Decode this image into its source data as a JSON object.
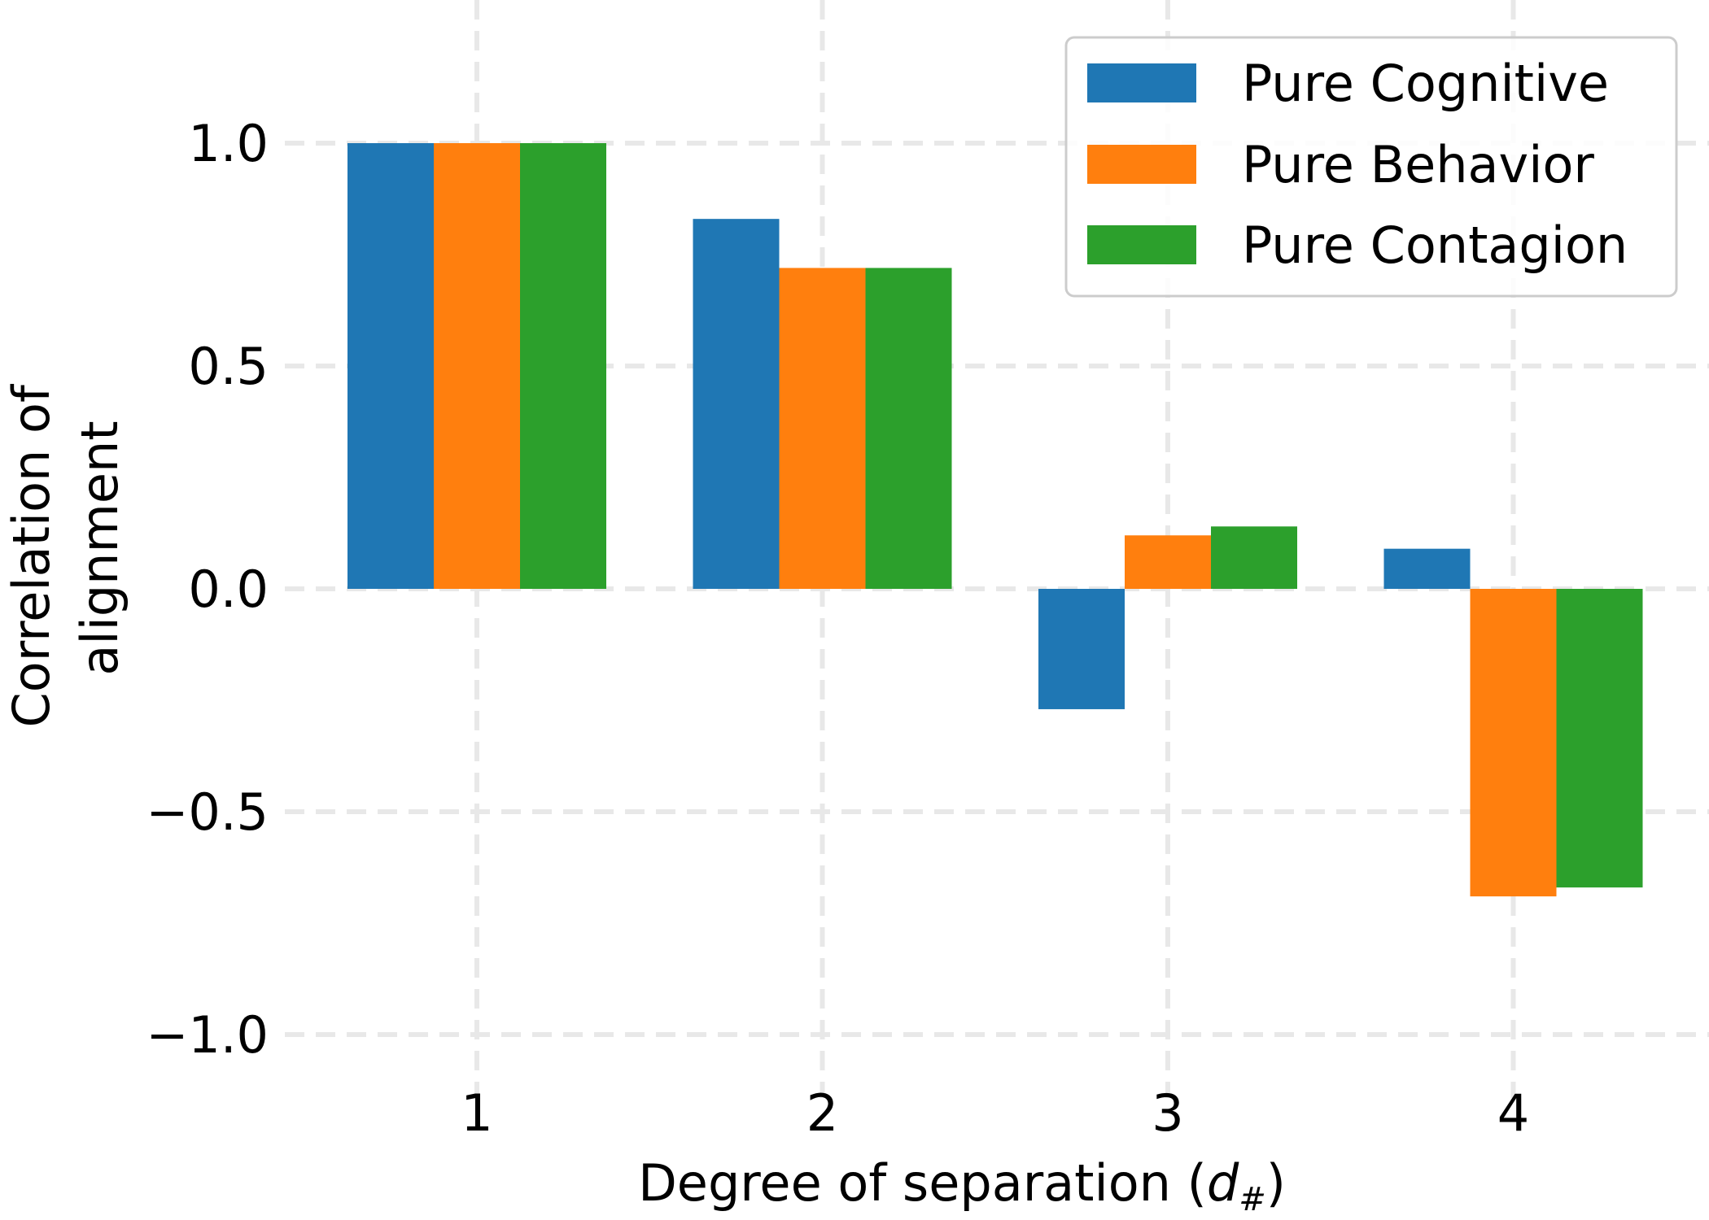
{
  "chart_data": {
    "type": "bar",
    "categories": [
      "1",
      "2",
      "3",
      "4"
    ],
    "series": [
      {
        "name": "Pure Cognitive",
        "color": "#1f77b4",
        "values": [
          1.0,
          0.83,
          -0.27,
          0.09
        ]
      },
      {
        "name": "Pure Behavior",
        "color": "#ff7f0e",
        "values": [
          1.0,
          0.72,
          0.12,
          -0.69
        ]
      },
      {
        "name": "Pure Contagion",
        "color": "#2ca02c",
        "values": [
          1.0,
          0.72,
          0.14,
          -0.67
        ]
      }
    ],
    "xlabel_text": "Degree of separation (",
    "xlabel_math_base": "d",
    "xlabel_math_sub": "#",
    "xlabel_close": ")",
    "ylabel_lines": [
      "Correlation of",
      "alignment"
    ],
    "yticks": [
      "1.0",
      "0.5",
      "0.0",
      "−0.5",
      "−1.0"
    ],
    "ytick_values": [
      1.0,
      0.5,
      0.0,
      -0.5,
      -1.0
    ],
    "ylim": [
      -1.1,
      1.3
    ],
    "grid": true,
    "legend_position": "top-right"
  }
}
